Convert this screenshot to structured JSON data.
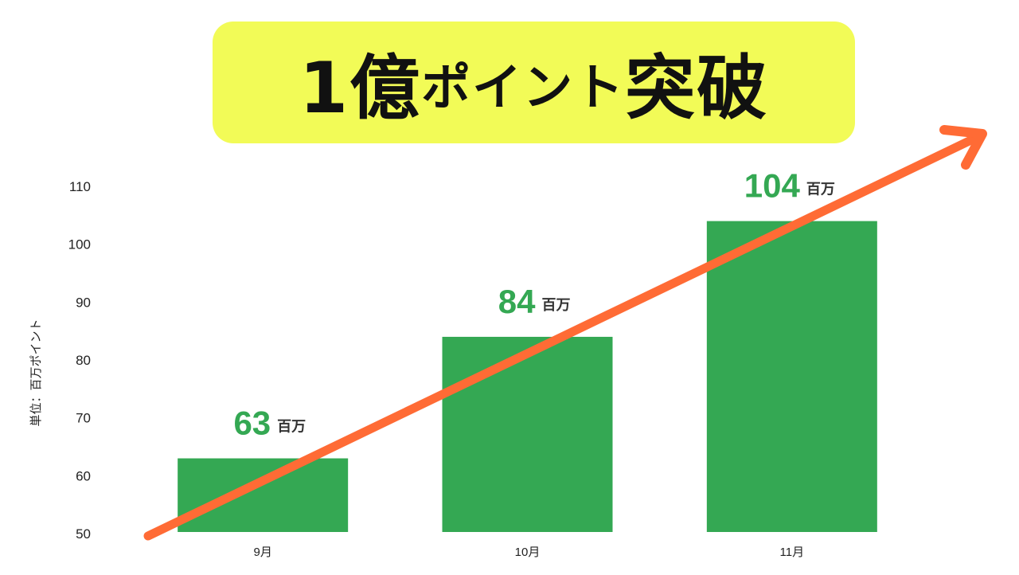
{
  "title": {
    "prefix": "1億",
    "middle": "ポイント",
    "suffix": "突破",
    "background": "#f2fb57"
  },
  "colors": {
    "bar": "#34a853",
    "label": "#34a853",
    "arrow": "#ff6b35"
  },
  "chart_data": {
    "type": "bar",
    "categories": [
      "9月",
      "10月",
      "11月"
    ],
    "values": [
      63,
      84,
      104
    ],
    "data_labels": [
      "63",
      "84",
      "104"
    ],
    "unit_label": "百万",
    "ylabel": "単位：百万ポイント",
    "ylim": [
      50,
      110
    ],
    "yticks": [
      50,
      60,
      70,
      80,
      90,
      100,
      110
    ],
    "grid": false,
    "annotation": "upward trend arrow"
  }
}
